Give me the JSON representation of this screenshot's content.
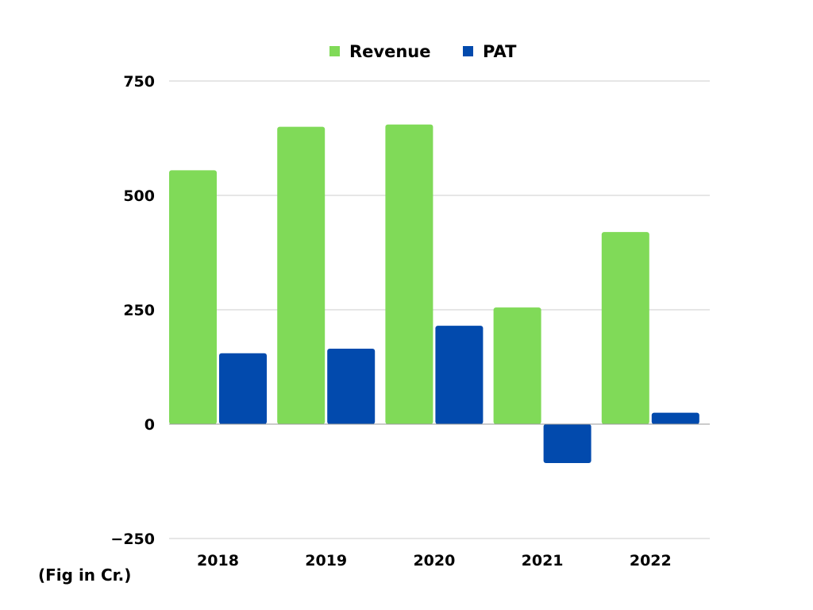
{
  "chart_data": {
    "type": "bar",
    "categories": [
      "2018",
      "2019",
      "2020",
      "2021",
      "2022"
    ],
    "series": [
      {
        "name": "Revenue",
        "color": "#80da58",
        "values": [
          555,
          650,
          655,
          255,
          420
        ]
      },
      {
        "name": "PAT",
        "color": "#024aad",
        "values": [
          155,
          165,
          215,
          -85,
          25
        ]
      }
    ],
    "ylim": [
      -250,
      750
    ],
    "yticks": [
      -250,
      0,
      250,
      500,
      750
    ],
    "ytick_labels": [
      "−250",
      "0",
      "250",
      "500",
      "750"
    ],
    "grid": true,
    "legend_position": "top-center",
    "title": "",
    "xlabel": "",
    "ylabel": ""
  },
  "note": "(Fig in Cr.)"
}
